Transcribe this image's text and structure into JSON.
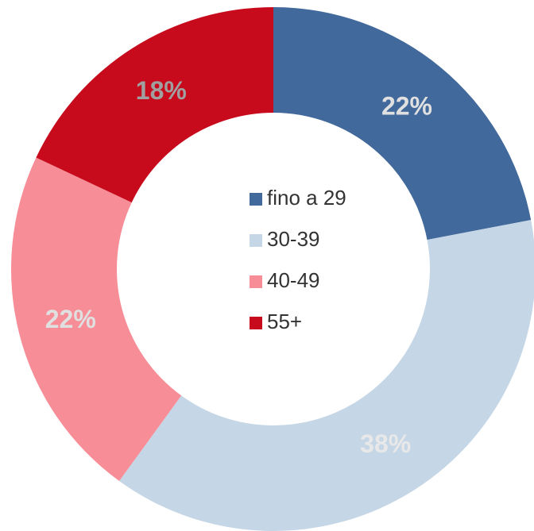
{
  "chart_data": {
    "type": "donut",
    "categories": [
      "fino a 29",
      "30-39",
      "40-49",
      "55+"
    ],
    "values": [
      22,
      38,
      22,
      18
    ],
    "value_labels": [
      "22%",
      "38%",
      "22%",
      "18%"
    ],
    "colors": [
      "#41699b",
      "#c5d6e6",
      "#f78d97",
      "#c80b1c"
    ],
    "label_colors": [
      "#e0e0e0",
      "#e8e8e8",
      "#e0e0e0",
      "#a0a0a0"
    ],
    "legend": "center"
  }
}
